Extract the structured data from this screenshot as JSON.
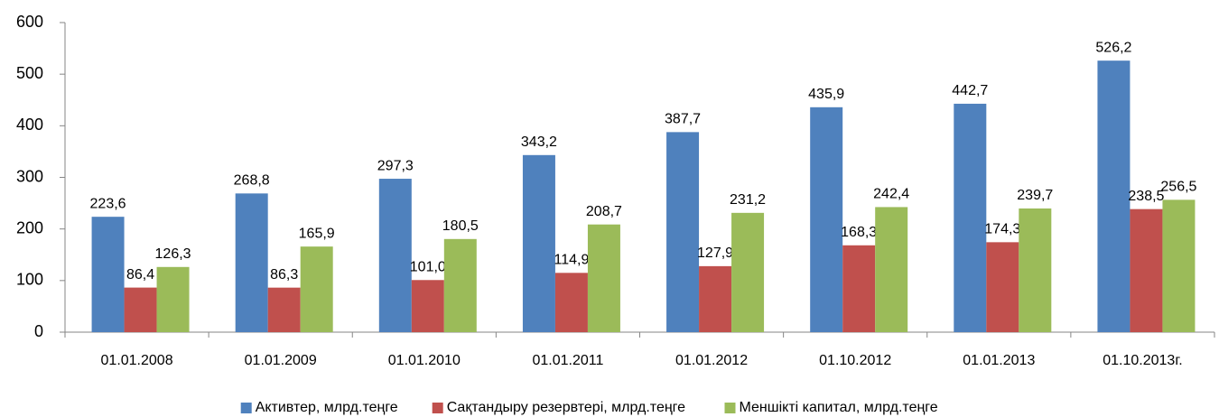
{
  "chart_data": {
    "type": "bar",
    "categories": [
      "01.01.2008",
      "01.01.2009",
      "01.01.2010",
      "01.01.2011",
      "01.01.2012",
      "01.10.2012",
      "01.01.2013",
      "01.10.2013г."
    ],
    "series": [
      {
        "name": "Активтер, млрд.теңге",
        "color": "#4f81bd",
        "values": [
          223.6,
          268.8,
          297.3,
          343.2,
          387.7,
          435.9,
          442.7,
          526.2
        ],
        "value_labels": [
          "223,6",
          "268,8",
          "297,3",
          "343,2",
          "387,7",
          "435,9",
          "442,7",
          "526,2"
        ]
      },
      {
        "name": "Сақтандыру резервтері, млрд.теңге",
        "color": "#c0504d",
        "values": [
          86.4,
          86.3,
          101.0,
          114.9,
          127.9,
          168.3,
          174.3,
          238.5
        ],
        "value_labels": [
          "86,4",
          "86,3",
          "101,0",
          "114,9",
          "127,9",
          "168,3",
          "174,3",
          "238,5"
        ]
      },
      {
        "name": "Меншікті капитал, млрд.теңге",
        "color": "#9bbb59",
        "values": [
          126.3,
          165.9,
          180.5,
          208.7,
          231.2,
          242.4,
          239.7,
          256.5
        ],
        "value_labels": [
          "126,3",
          "165,9",
          "180,5",
          "208,7",
          "231,2",
          "242,4",
          "239,7",
          "256,5"
        ]
      }
    ],
    "ylim": [
      0,
      600
    ],
    "yticks": [
      0,
      100,
      200,
      300,
      400,
      500,
      600
    ],
    "grid": false,
    "legend": "bottom"
  }
}
